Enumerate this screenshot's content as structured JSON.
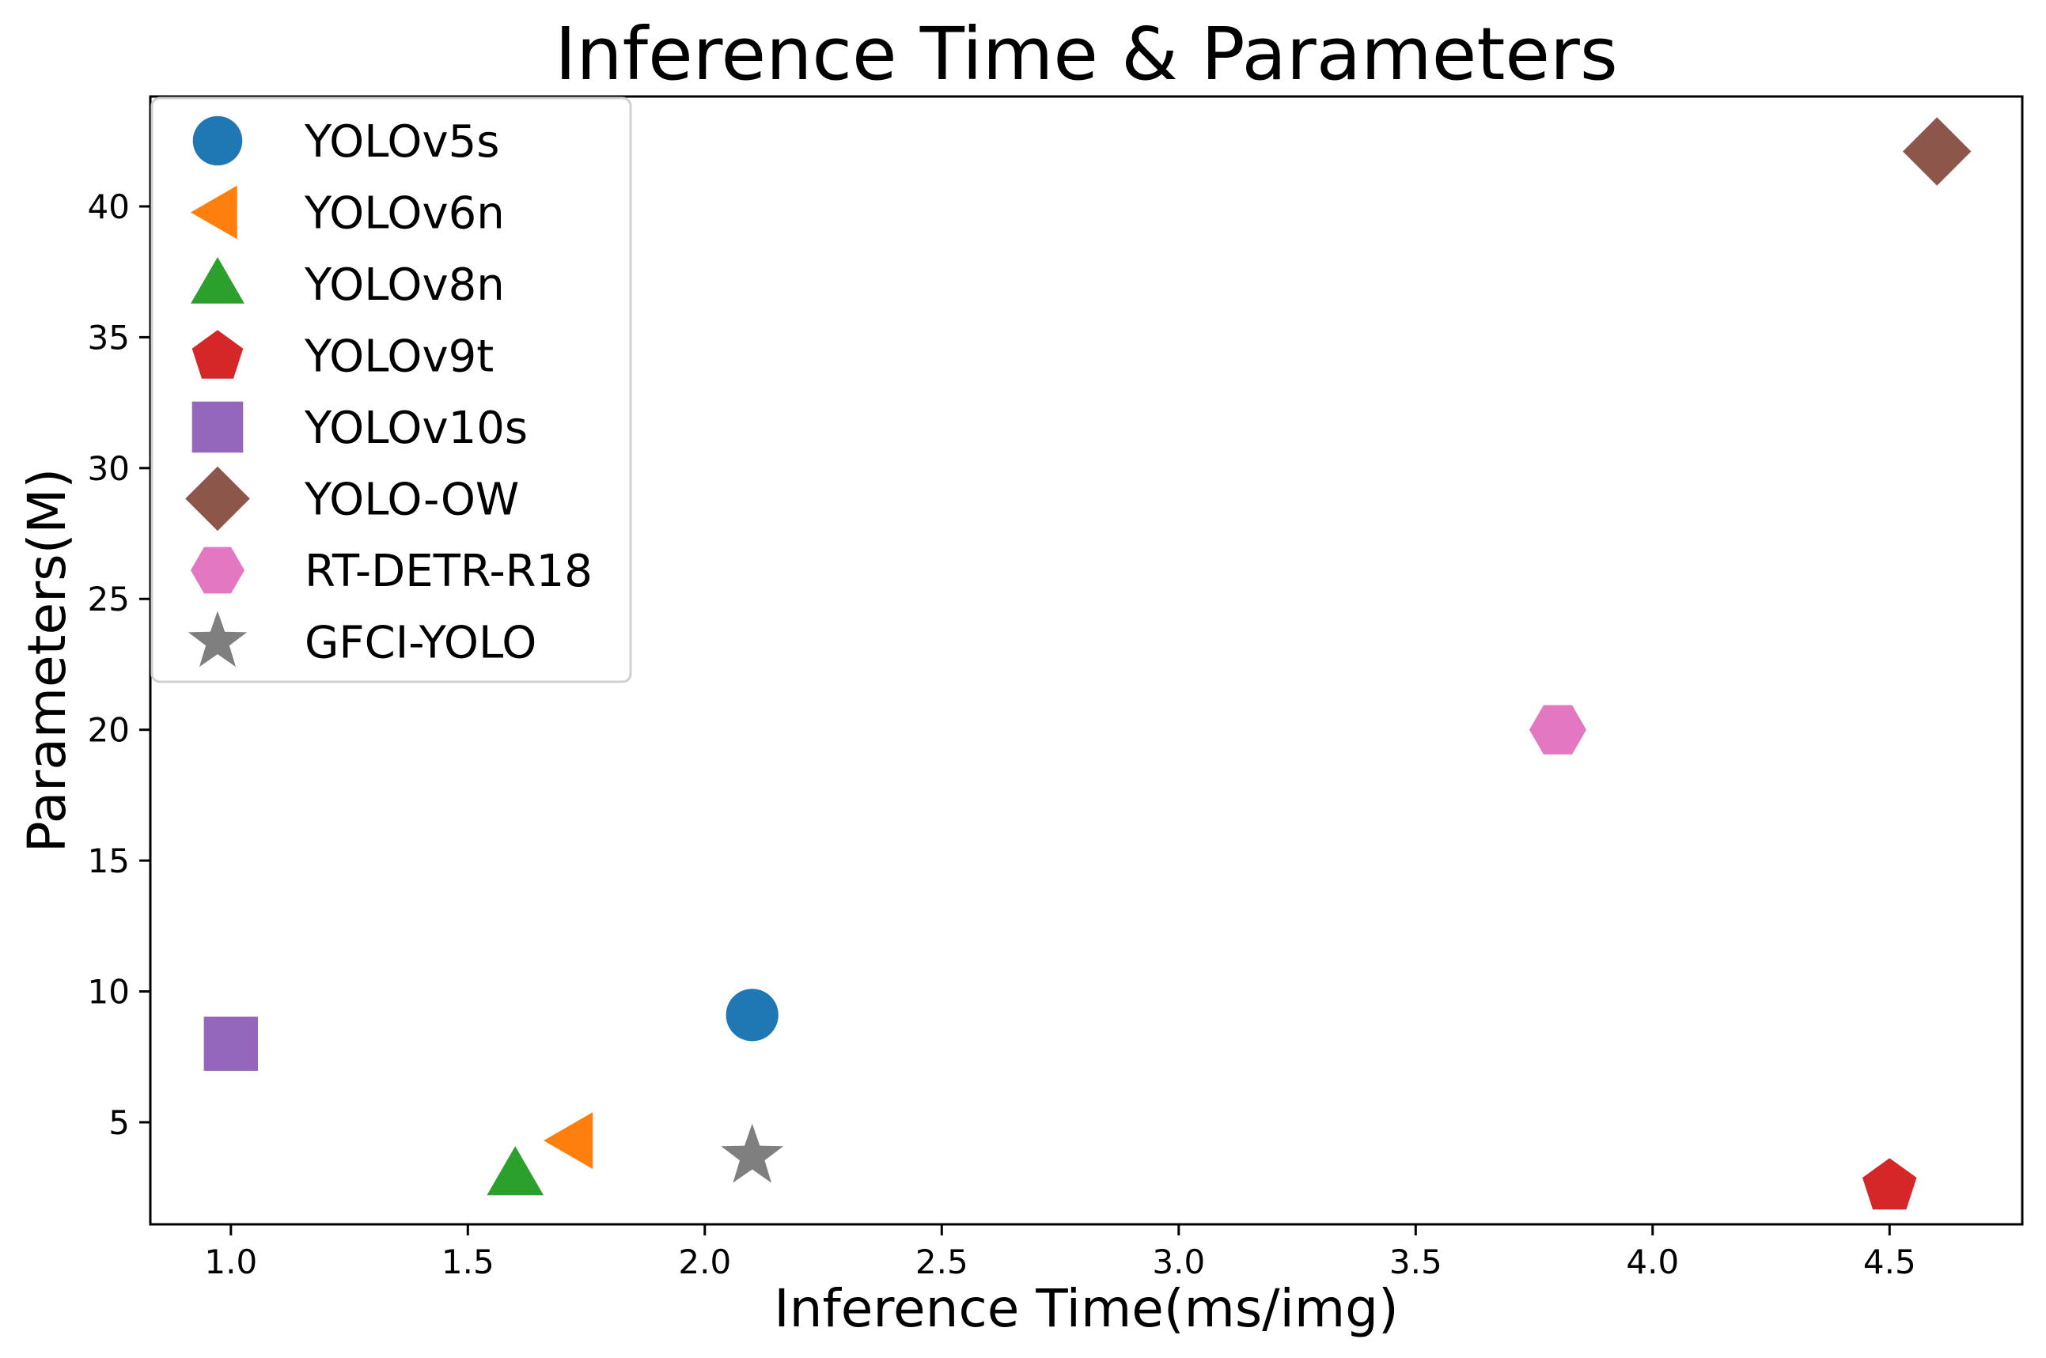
{
  "chart_data": {
    "type": "scatter",
    "title": "Inference Time & Parameters",
    "xlabel": "Inference Time(ms/img)",
    "ylabel": "Parameters(M)",
    "xlim": [
      0.83,
      4.78
    ],
    "ylim": [
      1.1,
      44.2
    ],
    "xticks": [
      "1.0",
      "1.5",
      "2.0",
      "2.5",
      "3.0",
      "3.5",
      "4.0",
      "4.5"
    ],
    "yticks": [
      "5",
      "10",
      "15",
      "20",
      "25",
      "30",
      "35",
      "40"
    ],
    "grid": false,
    "legend_position": "top-left",
    "series": [
      {
        "name": "YOLOv5s",
        "marker": "circle",
        "color": "#1f77b4",
        "x": 2.1,
        "y": 9.1
      },
      {
        "name": "YOLOv6n",
        "marker": "triangle-left",
        "color": "#ff7f0e",
        "x": 1.72,
        "y": 4.3
      },
      {
        "name": "YOLOv8n",
        "marker": "triangle-up",
        "color": "#2ca02c",
        "x": 1.6,
        "y": 3.0
      },
      {
        "name": "YOLOv9t",
        "marker": "pentagon",
        "color": "#d62728",
        "x": 4.5,
        "y": 2.6
      },
      {
        "name": "YOLOv10s",
        "marker": "square",
        "color": "#9467bd",
        "x": 1.0,
        "y": 8.0
      },
      {
        "name": "YOLO-OW",
        "marker": "diamond",
        "color": "#8c564b",
        "x": 4.6,
        "y": 42.1
      },
      {
        "name": "RT-DETR-R18",
        "marker": "hexagon",
        "color": "#e377c2",
        "x": 3.8,
        "y": 20.0
      },
      {
        "name": "GFCI-YOLO",
        "marker": "star",
        "color": "#7f7f7f",
        "x": 2.1,
        "y": 3.7
      }
    ]
  }
}
